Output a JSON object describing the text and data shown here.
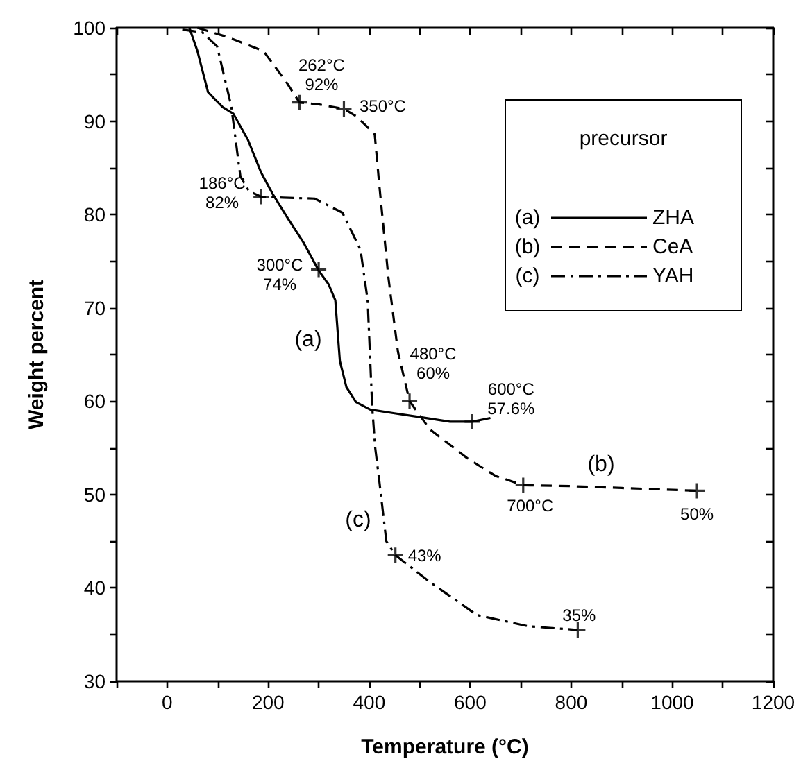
{
  "chart_data": {
    "type": "line",
    "xlabel": "Temperature (°C)",
    "ylabel": "Weight percent",
    "legend_title": "precursor",
    "legend": "top right",
    "grid": false,
    "marker": "none",
    "xlim": [
      -100,
      1200
    ],
    "xticks": [
      {
        "value": -100,
        "label": null
      },
      0,
      {
        "value": 100,
        "label": null
      },
      200,
      {
        "value": 300,
        "label": null
      },
      400,
      {
        "value": 500,
        "label": null
      },
      600,
      {
        "value": 700,
        "label": null
      },
      800,
      {
        "value": 900,
        "label": null
      },
      1000,
      {
        "value": 1100,
        "label": null
      },
      1200
    ],
    "ylim": [
      30,
      100
    ],
    "yticks": [
      30,
      {
        "value": 35,
        "label": null
      },
      40,
      {
        "value": 45,
        "label": null
      },
      50,
      {
        "value": 55,
        "label": null
      },
      60,
      {
        "value": 65,
        "label": null
      },
      70,
      {
        "value": 75,
        "label": null
      },
      80,
      {
        "value": 85,
        "label": null
      },
      90,
      {
        "value": 95,
        "label": null
      },
      100
    ],
    "series": [
      {
        "name": "ZHA",
        "color": "#000000",
        "line_style": "solid",
        "x": [
          44,
          60,
          81,
          110,
          131,
          160,
          186,
          209,
          240,
          270,
          300,
          320,
          333,
          342,
          355,
          374,
          402,
          450,
          500,
          560,
          604,
          640
        ],
        "values": [
          100,
          97.5,
          93.1,
          91.5,
          90.8,
          88,
          84.5,
          82.2,
          79.5,
          77,
          74,
          72.5,
          70.8,
          64.3,
          61.5,
          59.9,
          59.1,
          58.7,
          58.3,
          57.8,
          57.8,
          58.2
        ]
      },
      {
        "name": "CeA",
        "color": "#000000",
        "line_style": "dashed",
        "x": [
          60,
          120,
          191,
          237,
          262,
          300,
          350,
          375,
          411,
          420,
          438,
          457,
          480,
          520,
          594,
          650,
          705,
          800,
          900,
          1050
        ],
        "values": [
          100,
          99,
          97.5,
          94.1,
          92,
          91.8,
          91.3,
          90.5,
          88.6,
          83.2,
          73.3,
          65.3,
          60,
          57,
          53.9,
          52,
          51,
          50.9,
          50.7,
          50.4
        ]
      },
      {
        "name": "YAH",
        "color": "#000000",
        "line_style": "dashdot",
        "x": [
          30,
          70,
          99,
          127,
          145,
          162,
          186,
          230,
          292,
          347,
          383,
          397,
          406,
          412,
          420,
          434,
          452,
          521,
          613,
          714,
          813
        ],
        "values": [
          99.8,
          99.5,
          98,
          91.6,
          84.1,
          82.5,
          81.9,
          81.8,
          81.7,
          80.2,
          76.2,
          70.8,
          59.4,
          55,
          51.5,
          45,
          43.5,
          40.6,
          37.1,
          35.9,
          35.5
        ]
      },
      {
        "type": "scatter",
        "marker": "cross",
        "color": "#000000",
        "x": [
          186,
          262,
          300,
          350,
          452,
          480,
          604,
          705,
          813,
          1049
        ],
        "values": [
          81.9,
          92,
          74.1,
          91.3,
          43.5,
          60,
          57.8,
          51,
          35.5,
          50.4
        ]
      }
    ],
    "annotations": [
      {
        "text": "262°C\n92%",
        "x": 262,
        "y": 92
      },
      {
        "text": "350°C",
        "x": 350,
        "y": 91.3
      },
      {
        "text": "186°C\n82%",
        "x": 186,
        "y": 82
      },
      {
        "text": "300°C\n74%",
        "x": 300,
        "y": 74
      },
      {
        "text": "480°C\n60%",
        "x": 480,
        "y": 60
      },
      {
        "text": "600°C\n57.6%",
        "x": 604,
        "y": 57.6
      },
      {
        "text": "700°C",
        "x": 705,
        "y": 51
      },
      {
        "text": "50%",
        "x": 1049,
        "y": 50
      },
      {
        "text": "43%",
        "x": 452,
        "y": 43
      },
      {
        "text": "35%",
        "x": 813,
        "y": 35
      },
      "(a)",
      "(b)",
      "(c)"
    ]
  }
}
